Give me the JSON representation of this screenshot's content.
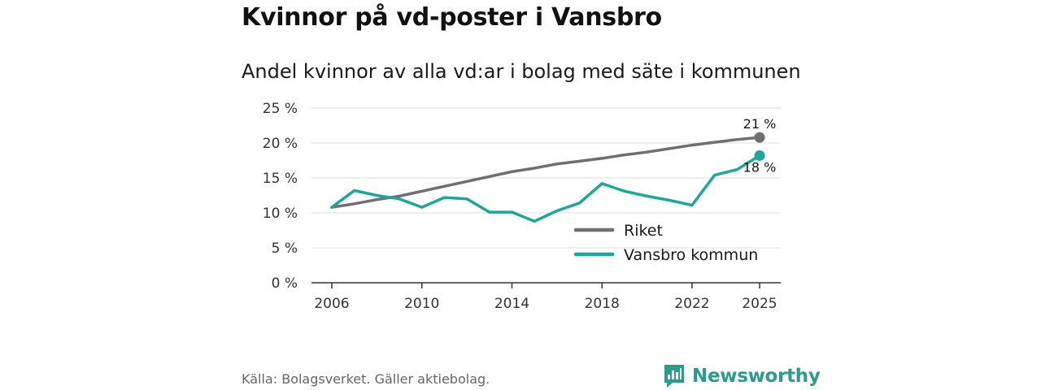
{
  "title": "Kvinnor på vd-poster i Vansbro",
  "subtitle": "Andel kvinnor av alla vd:ar i bolag med säte i kommunen",
  "source": "Källa: Bolagsverket. Gäller aktiebolag.",
  "brand": {
    "name": "Newsworthy",
    "icon": "newsworthy-logo-icon"
  },
  "colors": {
    "riket": "#6e6e73",
    "vansbro": "#1ba89a",
    "grid": "#dddddd",
    "brand": "#2a9c8c"
  },
  "chart_data": {
    "type": "line",
    "title": "Andel kvinnor av alla vd:ar i bolag med säte i kommunen",
    "xlabel": "",
    "ylabel": "",
    "xlim": [
      2006,
      2025
    ],
    "ylim": [
      0,
      25
    ],
    "x_ticks": [
      2006,
      2010,
      2014,
      2018,
      2022,
      2025
    ],
    "y_ticks": [
      0,
      5,
      10,
      15,
      20,
      25
    ],
    "y_tick_labels": [
      "0 %",
      "5 %",
      "10 %",
      "15 %",
      "20 %",
      "25 %"
    ],
    "grid": true,
    "legend_position": "bottom-right",
    "x": [
      2006,
      2007,
      2008,
      2009,
      2010,
      2011,
      2012,
      2013,
      2014,
      2015,
      2016,
      2017,
      2018,
      2019,
      2020,
      2021,
      2022,
      2023,
      2024,
      2025
    ],
    "series": [
      {
        "name": "Riket",
        "color": "#6e6e73",
        "values": [
          10.8,
          11.3,
          11.9,
          12.4,
          13.1,
          13.8,
          14.5,
          15.2,
          15.9,
          16.4,
          17.0,
          17.4,
          17.8,
          18.3,
          18.7,
          19.2,
          19.7,
          20.1,
          20.5,
          20.8
        ],
        "end_label": "21 %"
      },
      {
        "name": "Vansbro kommun",
        "color": "#1ba89a",
        "values": [
          10.8,
          13.2,
          12.5,
          12.0,
          10.8,
          12.2,
          12.0,
          10.1,
          10.1,
          8.8,
          10.3,
          11.4,
          14.2,
          13.1,
          12.4,
          11.8,
          11.1,
          15.4,
          16.2,
          18.2
        ],
        "end_label": "18 %"
      }
    ]
  }
}
